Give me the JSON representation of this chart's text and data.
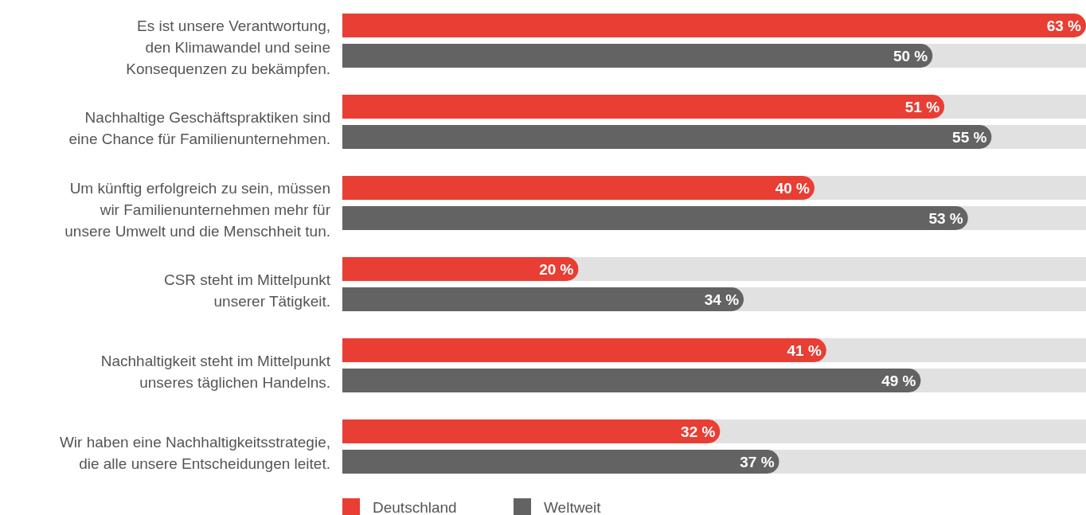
{
  "chart_data": {
    "type": "bar",
    "orientation": "horizontal",
    "legend": "bottom left",
    "categories": [
      "Es ist unsere Verantwortung,\nden Klimawandel und seine\nKonsequenzen zu bekämpfen.",
      "Nachhaltige Geschäftspraktiken sind\neine Chance für Familienunternehmen.",
      "Um künftig erfolgreich zu sein, müssen\nwir Familienunternehmen mehr für\nunsere Umwelt und die Menschheit tun.",
      "CSR steht im Mittelpunkt\nunserer Tätigkeit.",
      "Nachhaltigkeit steht im Mittelpunkt\nunseres täglichen Handelns.",
      "Wir haben eine Nachhaltigkeitsstrategie,\ndie alle unsere Entscheidungen leitet."
    ],
    "series": [
      {
        "name": "Deutschland",
        "color": "#e83e34",
        "values": [
          63,
          51,
          40,
          20,
          41,
          32
        ],
        "value_labels": [
          "63 %",
          "51 %",
          "40 %",
          "20 %",
          "41 %",
          "32 %"
        ]
      },
      {
        "name": "Weltweit",
        "color": "#636363",
        "values": [
          50,
          55,
          53,
          34,
          49,
          37
        ],
        "value_labels": [
          "50 %",
          "55 %",
          "53 %",
          "34 %",
          "49 %",
          "37 %"
        ]
      }
    ]
  }
}
